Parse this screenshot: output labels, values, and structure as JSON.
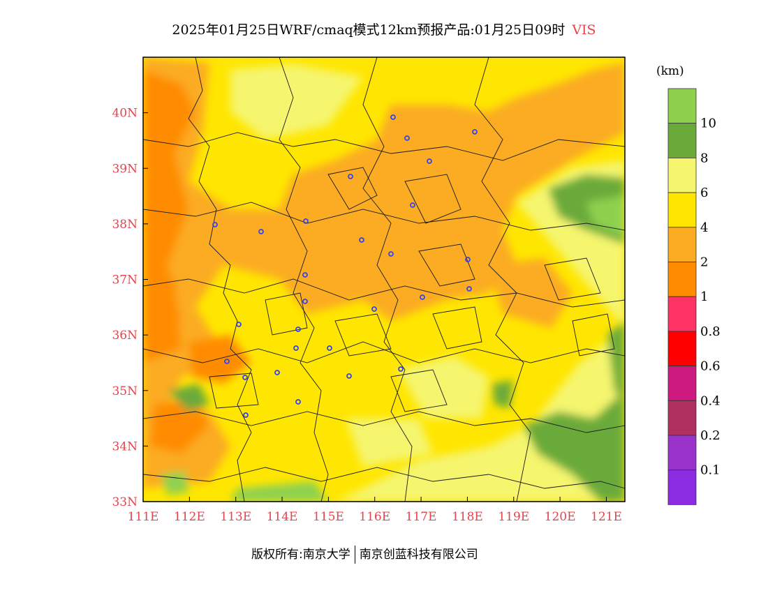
{
  "title": {
    "main": "2025年01月25日WRF/cmaq模式12km预报产品:01月25日09时",
    "variable": "VIS"
  },
  "map": {
    "lat_labels": [
      "40N",
      "39N",
      "38N",
      "37N",
      "36N",
      "35N",
      "34N",
      "33N"
    ],
    "lon_labels": [
      "111E",
      "112E",
      "113E",
      "114E",
      "115E",
      "116E",
      "117E",
      "118E",
      "119E",
      "120E",
      "121E"
    ],
    "label_color": "#e8424a",
    "extent": {
      "lon": [
        111,
        121.4
      ],
      "lat": [
        33,
        41
      ]
    }
  },
  "legend": {
    "unit": "(km)",
    "levels": [
      {
        "label": "10",
        "color": "#8ed14f"
      },
      {
        "label": "8",
        "color": "#6aaa3a"
      },
      {
        "label": "6",
        "color": "#f5f56e"
      },
      {
        "label": "4",
        "color": "#ffe600"
      },
      {
        "label": "2",
        "color": "#fbac22"
      },
      {
        "label": "1",
        "color": "#ff8c00"
      },
      {
        "label": "0.8",
        "color": "#ff3366"
      },
      {
        "label": "0.6",
        "color": "#ff0000"
      },
      {
        "label": "0.4",
        "color": "#cc1a80"
      },
      {
        "label": "0.2",
        "color": "#b03060"
      },
      {
        "label": "0.1",
        "color": "#9933cc"
      },
      {
        "label": "",
        "color": "#8b2be2"
      }
    ]
  },
  "footer": {
    "left": "版权所有:南京大学",
    "right": "南京创蓝科技有限公司"
  }
}
